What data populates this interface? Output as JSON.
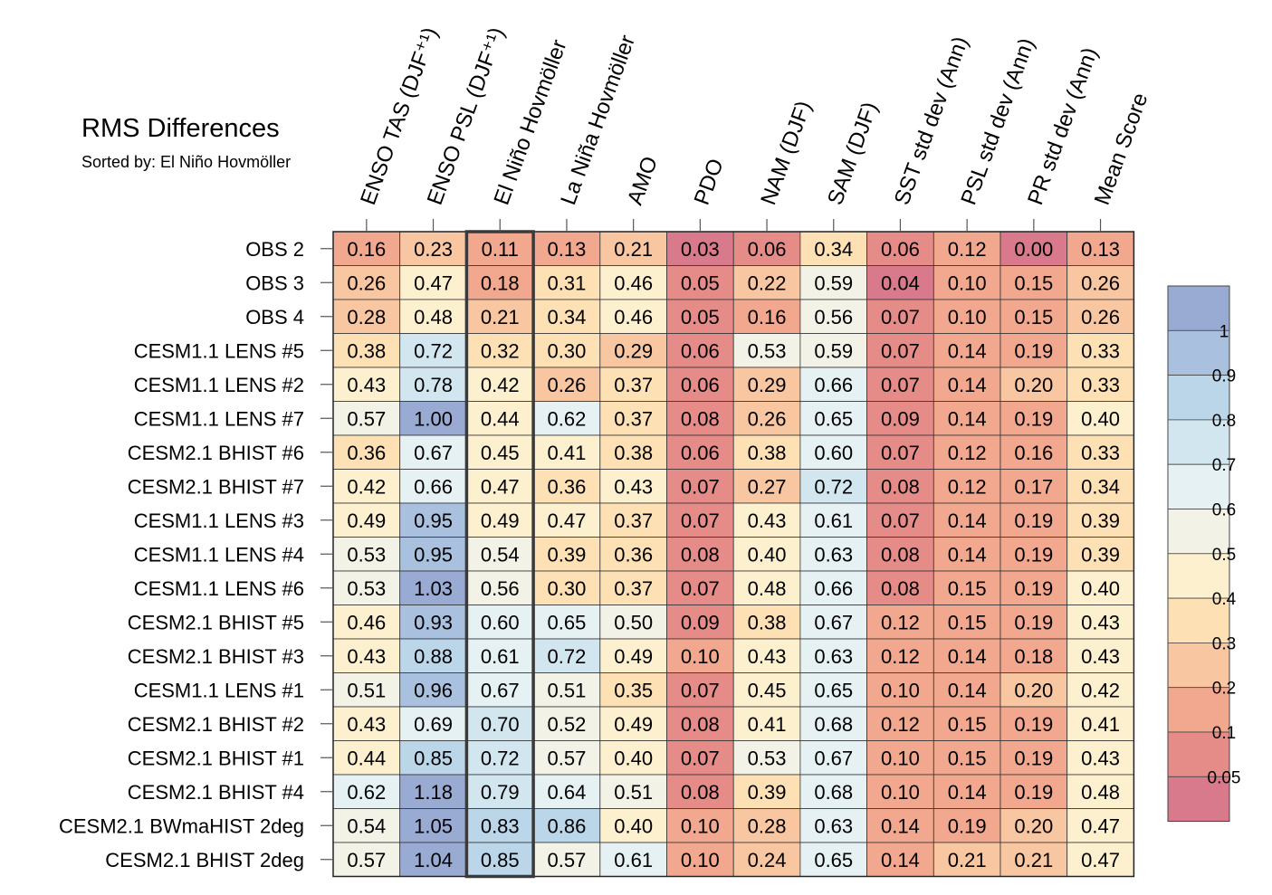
{
  "chart_data": {
    "type": "heatmap",
    "title": "RMS Differences",
    "subtitle": "Sorted by: El Niño Hovmöller",
    "highlighted_column": "El Niño Hovmöller",
    "columns": [
      "ENSO TAS (DJF⁺¹)",
      "ENSO PSL (DJF⁺¹)",
      "El Niño Hovmöller",
      "La Niña Hovmöller",
      "AMO",
      "PDO",
      "NAM (DJF)",
      "SAM (DJF)",
      "SST std dev (Ann)",
      "PSL std dev (Ann)",
      "PR std dev (Ann)",
      "Mean Score"
    ],
    "rows": [
      "OBS 2",
      "OBS 3",
      "OBS 4",
      "CESM1.1 LENS #5",
      "CESM1.1 LENS #2",
      "CESM1.1 LENS #7",
      "CESM2.1 BHIST #6",
      "CESM2.1 BHIST #7",
      "CESM1.1 LENS #3",
      "CESM1.1 LENS #4",
      "CESM1.1 LENS #6",
      "CESM2.1 BHIST #5",
      "CESM2.1 BHIST #3",
      "CESM1.1 LENS #1",
      "CESM2.1 BHIST #2",
      "CESM2.1 BHIST #1",
      "CESM2.1 BHIST #4",
      "CESM2.1 BWmaHIST 2deg",
      "CESM2.1 BHIST 2deg"
    ],
    "values": [
      [
        "0.16",
        "0.23",
        "0.11",
        "0.13",
        "0.21",
        "0.03",
        "0.06",
        "0.34",
        "0.06",
        "0.12",
        "0.00",
        "0.13"
      ],
      [
        "0.26",
        "0.47",
        "0.18",
        "0.31",
        "0.46",
        "0.05",
        "0.22",
        "0.59",
        "0.04",
        "0.10",
        "0.15",
        "0.26"
      ],
      [
        "0.28",
        "0.48",
        "0.21",
        "0.34",
        "0.46",
        "0.05",
        "0.16",
        "0.56",
        "0.07",
        "0.10",
        "0.15",
        "0.26"
      ],
      [
        "0.38",
        "0.72",
        "0.32",
        "0.30",
        "0.29",
        "0.06",
        "0.53",
        "0.59",
        "0.07",
        "0.14",
        "0.19",
        "0.33"
      ],
      [
        "0.43",
        "0.78",
        "0.42",
        "0.26",
        "0.37",
        "0.06",
        "0.29",
        "0.66",
        "0.07",
        "0.14",
        "0.20",
        "0.33"
      ],
      [
        "0.57",
        "1.00",
        "0.44",
        "0.62",
        "0.37",
        "0.08",
        "0.26",
        "0.65",
        "0.09",
        "0.14",
        "0.19",
        "0.40"
      ],
      [
        "0.36",
        "0.67",
        "0.45",
        "0.41",
        "0.38",
        "0.06",
        "0.38",
        "0.60",
        "0.07",
        "0.12",
        "0.16",
        "0.33"
      ],
      [
        "0.42",
        "0.66",
        "0.47",
        "0.36",
        "0.43",
        "0.07",
        "0.27",
        "0.72",
        "0.08",
        "0.12",
        "0.17",
        "0.34"
      ],
      [
        "0.49",
        "0.95",
        "0.49",
        "0.47",
        "0.37",
        "0.07",
        "0.43",
        "0.61",
        "0.07",
        "0.14",
        "0.19",
        "0.39"
      ],
      [
        "0.53",
        "0.95",
        "0.54",
        "0.39",
        "0.36",
        "0.08",
        "0.40",
        "0.63",
        "0.08",
        "0.14",
        "0.19",
        "0.39"
      ],
      [
        "0.53",
        "1.03",
        "0.56",
        "0.30",
        "0.37",
        "0.07",
        "0.48",
        "0.66",
        "0.08",
        "0.15",
        "0.19",
        "0.40"
      ],
      [
        "0.46",
        "0.93",
        "0.60",
        "0.65",
        "0.50",
        "0.09",
        "0.38",
        "0.67",
        "0.12",
        "0.15",
        "0.19",
        "0.43"
      ],
      [
        "0.43",
        "0.88",
        "0.61",
        "0.72",
        "0.49",
        "0.10",
        "0.43",
        "0.63",
        "0.12",
        "0.14",
        "0.18",
        "0.43"
      ],
      [
        "0.51",
        "0.96",
        "0.67",
        "0.51",
        "0.35",
        "0.07",
        "0.45",
        "0.65",
        "0.10",
        "0.14",
        "0.20",
        "0.42"
      ],
      [
        "0.43",
        "0.69",
        "0.70",
        "0.52",
        "0.49",
        "0.08",
        "0.41",
        "0.68",
        "0.12",
        "0.15",
        "0.19",
        "0.41"
      ],
      [
        "0.44",
        "0.85",
        "0.72",
        "0.57",
        "0.40",
        "0.07",
        "0.53",
        "0.67",
        "0.10",
        "0.15",
        "0.19",
        "0.43"
      ],
      [
        "0.62",
        "1.18",
        "0.79",
        "0.64",
        "0.51",
        "0.08",
        "0.39",
        "0.68",
        "0.10",
        "0.14",
        "0.19",
        "0.48"
      ],
      [
        "0.54",
        "1.05",
        "0.83",
        "0.86",
        "0.40",
        "0.10",
        "0.28",
        "0.63",
        "0.14",
        "0.19",
        "0.20",
        "0.47"
      ],
      [
        "0.57",
        "1.04",
        "0.85",
        "0.57",
        "0.61",
        "0.10",
        "0.24",
        "0.65",
        "0.14",
        "0.21",
        "0.21",
        "0.47"
      ]
    ],
    "colorbar": {
      "tick_labels": [
        "1",
        "0.9",
        "0.8",
        "0.7",
        "0.6",
        "0.5",
        "0.4",
        "0.3",
        "0.2",
        "0.1",
        "0.05"
      ],
      "bin_colors_top_to_bottom": [
        "#9aabd3",
        "#a9c1de",
        "#bad6e8",
        "#d2e6f0",
        "#e6f1f4",
        "#f2f2e6",
        "#fdf0cf",
        "#fde1b5",
        "#f9c6a2",
        "#f2a88e",
        "#e68c88",
        "#d87a8c"
      ]
    }
  }
}
